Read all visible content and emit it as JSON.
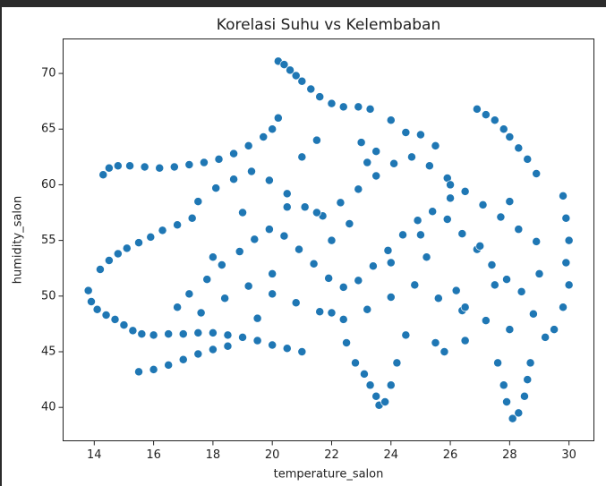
{
  "chart_data": {
    "type": "scatter",
    "title": "Korelasi Suhu vs Kelembaban",
    "x_label": "temperature_salon",
    "y_label": "humidity_salon",
    "color": "#1f77b4",
    "xlim": [
      12.95,
      30.84
    ],
    "ylim": [
      37.0,
      73.1
    ],
    "xticks": [
      14,
      16,
      18,
      20,
      22,
      24,
      26,
      28,
      30
    ],
    "yticks": [
      40,
      45,
      50,
      55,
      60,
      65,
      70
    ],
    "x": [
      13.8,
      13.9,
      14.1,
      14.4,
      14.7,
      15.0,
      15.3,
      15.6,
      16.0,
      16.5,
      17.0,
      17.5,
      18.0,
      18.5,
      19.0,
      19.5,
      20.0,
      20.5,
      21.0,
      14.2,
      14.5,
      14.8,
      15.1,
      15.5,
      15.9,
      16.3,
      16.8,
      17.3,
      14.3,
      14.5,
      14.8,
      15.2,
      15.7,
      16.2,
      16.7,
      17.2,
      17.7,
      18.2,
      18.7,
      19.2,
      19.7,
      20.0,
      20.2,
      20.2,
      20.4,
      20.6,
      20.8,
      21.0,
      21.3,
      21.6,
      22.0,
      22.4,
      22.9,
      23.3,
      22.8,
      23.1,
      23.3,
      23.5,
      23.6,
      23.8,
      24.0,
      24.2,
      27.6,
      27.8,
      27.9,
      28.1,
      28.3,
      28.5,
      28.6,
      28.7,
      29.8,
      29.9,
      30.0,
      29.9,
      30.0,
      29.8,
      29.5,
      29.2,
      26.9,
      27.2,
      27.5,
      27.8,
      28.0,
      28.3,
      28.6,
      28.9,
      15.5,
      16.0,
      16.5,
      17.0,
      17.5,
      18.0,
      18.5,
      17.2,
      17.8,
      18.3,
      18.9,
      19.4,
      19.9,
      20.4,
      20.9,
      21.4,
      21.9,
      22.4,
      22.9,
      23.4,
      23.9,
      24.4,
      24.9,
      25.4,
      25.9,
      26.4,
      26.9,
      27.4,
      27.9,
      28.4,
      17.5,
      18.1,
      18.7,
      19.3,
      19.9,
      20.5,
      21.1,
      21.7,
      22.3,
      22.9,
      23.5,
      24.1,
      24.7,
      25.3,
      25.9,
      26.5,
      27.1,
      27.7,
      28.3,
      28.9,
      16.8,
      17.6,
      18.4,
      19.2,
      20.0,
      20.8,
      21.6,
      22.4,
      23.2,
      24.0,
      24.8,
      25.6,
      26.4,
      27.2,
      28.0,
      28.8,
      18.0,
      19.0,
      20.0,
      21.0,
      22.0,
      23.0,
      24.0,
      25.0,
      26.0,
      27.0,
      28.0,
      29.0,
      19.5,
      20.5,
      21.5,
      22.5,
      23.5,
      24.5,
      25.5,
      26.5,
      27.5,
      24.0,
      24.5,
      25.0,
      25.5,
      26.0,
      26.5,
      21.5,
      22.0,
      22.6,
      23.2,
      25.2,
      25.8,
      26.2
    ],
    "values": [
      50.5,
      49.5,
      48.8,
      48.3,
      47.9,
      47.4,
      46.9,
      46.6,
      46.5,
      46.6,
      46.6,
      46.7,
      46.7,
      46.5,
      46.3,
      46.0,
      45.6,
      45.3,
      45.0,
      52.4,
      53.2,
      53.8,
      54.3,
      54.8,
      55.3,
      55.9,
      56.4,
      57.0,
      60.9,
      61.5,
      61.7,
      61.7,
      61.6,
      61.5,
      61.6,
      61.8,
      62.0,
      62.3,
      62.8,
      63.5,
      64.3,
      65.0,
      66.0,
      71.1,
      70.8,
      70.3,
      69.8,
      69.3,
      68.6,
      67.9,
      67.3,
      67.0,
      67.0,
      66.8,
      44.0,
      43.0,
      42.0,
      41.0,
      40.2,
      40.5,
      42.0,
      44.0,
      44.0,
      42.0,
      40.5,
      39.0,
      39.5,
      41.0,
      42.5,
      44.0,
      59.0,
      57.0,
      55.0,
      53.0,
      51.0,
      49.0,
      47.0,
      46.3,
      66.8,
      66.3,
      65.8,
      65.0,
      64.3,
      63.3,
      62.3,
      61.0,
      43.2,
      43.4,
      43.8,
      44.3,
      44.8,
      45.2,
      45.5,
      50.2,
      51.5,
      52.8,
      54.0,
      55.1,
      56.0,
      55.4,
      54.2,
      52.9,
      51.6,
      50.8,
      51.4,
      52.7,
      54.1,
      55.5,
      56.8,
      57.6,
      56.9,
      55.6,
      54.2,
      52.8,
      51.5,
      50.4,
      58.5,
      59.7,
      60.5,
      61.2,
      60.4,
      59.2,
      58.0,
      57.2,
      58.4,
      59.6,
      60.8,
      61.9,
      62.5,
      61.7,
      60.6,
      59.4,
      58.2,
      57.1,
      56.0,
      54.9,
      49.0,
      48.5,
      49.8,
      50.9,
      50.2,
      49.4,
      48.6,
      47.9,
      48.8,
      49.9,
      51.0,
      49.8,
      48.7,
      47.8,
      47.0,
      48.4,
      53.5,
      57.5,
      52.0,
      62.5,
      55.0,
      63.8,
      53.0,
      64.5,
      60.0,
      54.5,
      58.5,
      52.0,
      48.0,
      58.0,
      64.0,
      45.8,
      63.0,
      46.5,
      63.5,
      46.0,
      51.0,
      65.8,
      64.7,
      55.5,
      45.8,
      58.8,
      49.0,
      57.5,
      48.5,
      56.5,
      62.0,
      53.5,
      45.0,
      50.5
    ]
  }
}
